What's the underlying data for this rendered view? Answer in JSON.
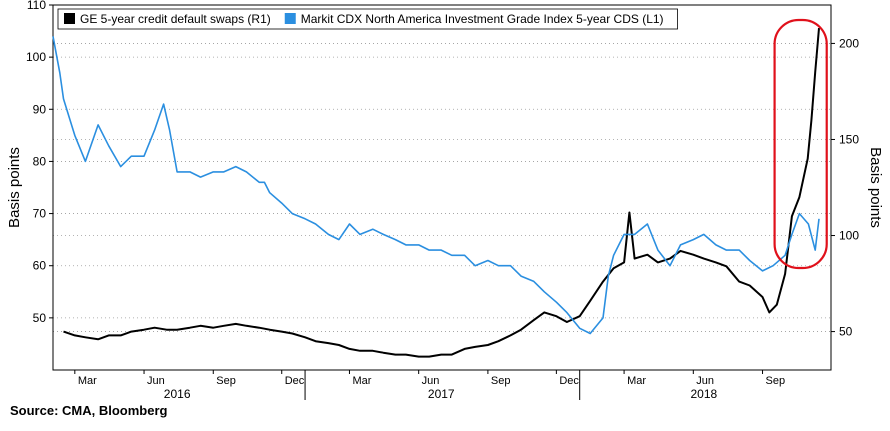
{
  "chart_data": {
    "type": "line",
    "legend": {
      "placement": "top-left",
      "entries": [
        {
          "label": "GE 5-year credit default swaps (R1)",
          "color": "#000000"
        },
        {
          "label": "Markit CDX North America Investment Grade Index 5-year CDS (L1)",
          "color": "#2b8fe0"
        }
      ]
    },
    "y_left": {
      "label": "Basis points",
      "ticks": [
        "110",
        "100",
        "90",
        "80",
        "70",
        "60",
        "50"
      ],
      "range": [
        40,
        110
      ]
    },
    "y_right": {
      "label": "Basis points",
      "ticks": [
        "200",
        "150",
        "100",
        "50"
      ],
      "range": [
        30,
        220
      ]
    },
    "x_months": [
      "Mar",
      "Jun",
      "Sep",
      "Dec",
      "Mar",
      "Jun",
      "Sep",
      "Dec",
      "Mar",
      "Jun",
      "Sep"
    ],
    "x_years": [
      "2016",
      "2017",
      "2018"
    ],
    "grid": "dotted horizontal at left-axis ticks",
    "highlight": "red rounded outline around late-2018 spike",
    "series": [
      {
        "name": "GE 5-year credit default swaps (R1)",
        "axis": "right",
        "color": "#000000",
        "x": [
          "2016-02-15",
          "2016-03-01",
          "2016-03-15",
          "2016-04-01",
          "2016-04-15",
          "2016-05-01",
          "2016-05-15",
          "2016-06-01",
          "2016-06-15",
          "2016-07-01",
          "2016-07-15",
          "2016-08-01",
          "2016-08-15",
          "2016-09-01",
          "2016-09-15",
          "2016-10-01",
          "2016-10-15",
          "2016-11-01",
          "2016-11-15",
          "2016-12-01",
          "2016-12-15",
          "2017-01-01",
          "2017-01-15",
          "2017-02-01",
          "2017-02-15",
          "2017-03-01",
          "2017-03-15",
          "2017-04-01",
          "2017-04-15",
          "2017-05-01",
          "2017-05-15",
          "2017-06-01",
          "2017-06-15",
          "2017-07-01",
          "2017-07-15",
          "2017-08-01",
          "2017-08-15",
          "2017-09-01",
          "2017-09-15",
          "2017-10-01",
          "2017-10-15",
          "2017-11-01",
          "2017-11-15",
          "2017-12-01",
          "2017-12-15",
          "2018-01-01",
          "2018-01-15",
          "2018-02-01",
          "2018-02-15",
          "2018-03-01",
          "2018-03-08",
          "2018-03-15",
          "2018-04-01",
          "2018-04-15",
          "2018-05-01",
          "2018-05-15",
          "2018-06-01",
          "2018-06-15",
          "2018-07-01",
          "2018-07-15",
          "2018-08-01",
          "2018-08-15",
          "2018-09-01",
          "2018-09-10",
          "2018-09-20",
          "2018-10-01",
          "2018-10-10",
          "2018-10-20",
          "2018-10-31",
          "2018-11-05",
          "2018-11-10",
          "2018-11-15"
        ],
        "values": [
          50,
          48,
          47,
          46,
          48,
          48,
          50,
          51,
          52,
          51,
          51,
          52,
          53,
          52,
          53,
          54,
          53,
          52,
          51,
          50,
          49,
          47,
          45,
          44,
          43,
          41,
          40,
          40,
          39,
          38,
          38,
          37,
          37,
          38,
          38,
          41,
          42,
          43,
          45,
          48,
          51,
          56,
          60,
          58,
          55,
          58,
          66,
          76,
          83,
          86,
          112,
          88,
          90,
          86,
          88,
          92,
          90,
          88,
          86,
          84,
          76,
          74,
          68,
          60,
          64,
          80,
          110,
          120,
          140,
          160,
          185,
          208
        ]
      },
      {
        "name": "Markit CDX North America Investment Grade Index 5-year CDS (L1)",
        "axis": "left",
        "color": "#2b8fe0",
        "x": [
          "2016-02-01",
          "2016-02-10",
          "2016-02-15",
          "2016-03-01",
          "2016-03-15",
          "2016-04-01",
          "2016-04-15",
          "2016-05-01",
          "2016-05-15",
          "2016-06-01",
          "2016-06-15",
          "2016-06-27",
          "2016-07-05",
          "2016-07-15",
          "2016-08-01",
          "2016-08-15",
          "2016-09-01",
          "2016-09-15",
          "2016-10-01",
          "2016-10-15",
          "2016-11-01",
          "2016-11-08",
          "2016-11-15",
          "2016-12-01",
          "2016-12-15",
          "2017-01-01",
          "2017-01-15",
          "2017-02-01",
          "2017-02-15",
          "2017-03-01",
          "2017-03-15",
          "2017-04-01",
          "2017-04-15",
          "2017-05-01",
          "2017-05-15",
          "2017-06-01",
          "2017-06-15",
          "2017-07-01",
          "2017-07-15",
          "2017-08-01",
          "2017-08-15",
          "2017-09-01",
          "2017-09-15",
          "2017-10-01",
          "2017-10-15",
          "2017-11-01",
          "2017-11-15",
          "2017-12-01",
          "2017-12-15",
          "2018-01-01",
          "2018-01-15",
          "2018-02-01",
          "2018-02-08",
          "2018-02-15",
          "2018-03-01",
          "2018-03-15",
          "2018-04-01",
          "2018-04-15",
          "2018-05-01",
          "2018-05-15",
          "2018-06-01",
          "2018-06-15",
          "2018-07-01",
          "2018-07-15",
          "2018-08-01",
          "2018-08-15",
          "2018-09-01",
          "2018-09-15",
          "2018-10-01",
          "2018-10-10",
          "2018-10-20",
          "2018-11-01",
          "2018-11-10",
          "2018-11-15"
        ],
        "values": [
          104,
          97,
          92,
          85,
          80,
          87,
          83,
          79,
          81,
          81,
          86,
          91,
          86,
          78,
          78,
          77,
          78,
          78,
          79,
          78,
          76,
          76,
          74,
          72,
          70,
          69,
          68,
          66,
          65,
          68,
          66,
          67,
          66,
          65,
          64,
          64,
          63,
          63,
          62,
          62,
          60,
          61,
          60,
          60,
          58,
          57,
          55,
          53,
          51,
          48,
          47,
          50,
          58,
          62,
          66,
          66,
          68,
          63,
          60,
          64,
          65,
          66,
          64,
          63,
          63,
          61,
          59,
          60,
          62,
          66,
          70,
          68,
          63,
          69
        ]
      }
    ]
  },
  "source": "Source: CMA, Bloomberg"
}
